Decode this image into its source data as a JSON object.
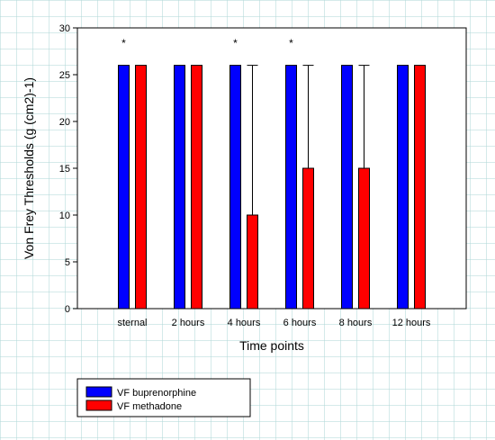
{
  "chart_data": {
    "type": "bar",
    "categories": [
      "sternal",
      "2 hours",
      "4 hours",
      "6 hours",
      "8 hours",
      "12 hours"
    ],
    "series": [
      {
        "name": "VF buprenorphine",
        "color": "#0000ff",
        "values": [
          26,
          26,
          26,
          26,
          26,
          26
        ]
      },
      {
        "name": "VF methadone",
        "color": "#ff0000",
        "values": [
          26,
          26,
          10,
          15,
          15,
          26
        ],
        "error_upper": [
          0,
          0,
          16,
          11,
          11,
          0
        ]
      }
    ],
    "annotations": [
      {
        "category": "sternal",
        "text": "*"
      },
      {
        "category": "4 hours",
        "text": "*"
      },
      {
        "category": "6 hours",
        "text": "*"
      }
    ],
    "xlabel": "Time points",
    "ylabel": "Von Frey Thresholds (g (cm2)-1)",
    "ylim": [
      0,
      30
    ],
    "yticks": [
      0,
      5,
      10,
      15,
      20,
      25,
      30
    ],
    "grid": false,
    "legend": "bottom-left, below plot"
  }
}
